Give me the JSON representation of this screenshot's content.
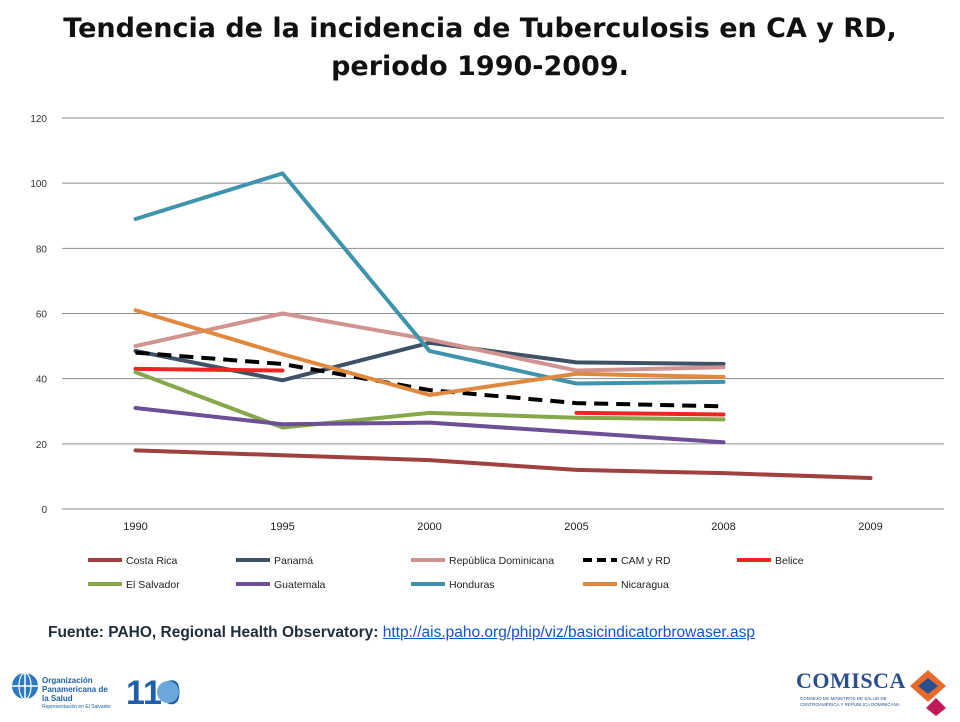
{
  "title": "Tendencia de la incidencia de Tuberculosis en CA y RD, periodo 1990-2009.",
  "source": {
    "label": "Fuente: PAHO, Regional Health Observatory:",
    "link": "http://ais.paho.org/phip/viz/basicindicatorbrowaser.asp"
  },
  "logos": {
    "paho_name": "Organización Panamericana de la Salud",
    "paho_sub": "Representación en El Salvador",
    "anniversary": "110",
    "comisca_name": "COMISCA",
    "comisca_sub": "CONSEJO DE MINISTROS DE SALUD DE CENTROAMÉRICA Y REPÚBLICA DOMINICANA"
  },
  "chart_data": {
    "type": "line",
    "categories": [
      "1990",
      "1995",
      "2000",
      "2005",
      "2008",
      "2009"
    ],
    "ylim": [
      0,
      120
    ],
    "yticks": [
      0,
      20,
      40,
      60,
      80,
      100,
      120
    ],
    "grid": true,
    "legend_position": "bottom",
    "series": [
      {
        "name": "Costa Rica",
        "color": "#a0403f",
        "dashed": false,
        "values": [
          18,
          16.5,
          15,
          12,
          11,
          9.5
        ]
      },
      {
        "name": "Panamá",
        "color": "#3f5166",
        "dashed": false,
        "values": [
          48.5,
          39.5,
          51,
          45,
          44.5,
          null
        ]
      },
      {
        "name": "República Dominicana",
        "color": "#d19390",
        "dashed": false,
        "values": [
          50,
          60,
          52,
          42.5,
          43.5,
          null
        ]
      },
      {
        "name": "CAM y RD",
        "color": "#000000",
        "dashed": true,
        "values": [
          48,
          44.5,
          36.5,
          32.5,
          31.5,
          null
        ]
      },
      {
        "name": "Belice",
        "color": "#ee2323",
        "dashed": false,
        "values": [
          43,
          42.5,
          null,
          29.5,
          29,
          null
        ]
      },
      {
        "name": "El Salvador",
        "color": "#86a84a",
        "dashed": false,
        "values": [
          42,
          25,
          29.5,
          28,
          27.5,
          null
        ]
      },
      {
        "name": "Guatemala",
        "color": "#6d4f97",
        "dashed": false,
        "values": [
          31,
          26,
          26.5,
          23.5,
          20.5,
          null
        ]
      },
      {
        "name": "Honduras",
        "color": "#3f94ad",
        "dashed": false,
        "values": [
          89,
          103,
          48.5,
          38.5,
          39,
          null
        ]
      },
      {
        "name": "Nicaragua",
        "color": "#e0883d",
        "dashed": false,
        "values": [
          61,
          47.5,
          35,
          41.5,
          40.5,
          null
        ]
      }
    ]
  }
}
